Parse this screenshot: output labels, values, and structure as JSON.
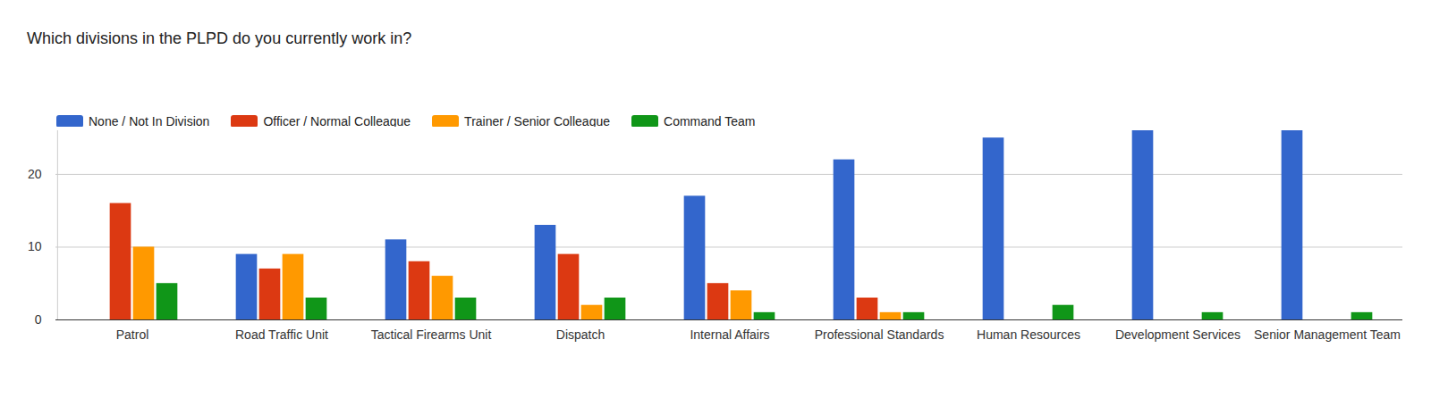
{
  "chart_data": {
    "type": "bar",
    "title": "Which divisions in the PLPD do you currently work in?",
    "categories": [
      "Patrol",
      "Road Traffic Unit",
      "Tactical Firearms Unit",
      "Dispatch",
      "Internal Affairs",
      "Professional Standards",
      "Human Resources",
      "Development Services",
      "Senior Management Team"
    ],
    "series": [
      {
        "name": "None / Not In Division",
        "color": "#3366cc",
        "values": [
          0,
          9,
          11,
          13,
          17,
          22,
          25,
          26,
          26
        ]
      },
      {
        "name": "Officer / Normal Colleague",
        "color": "#dc3912",
        "values": [
          16,
          7,
          8,
          9,
          5,
          3,
          0,
          0,
          0
        ]
      },
      {
        "name": "Trainer / Senior Colleague",
        "color": "#ff9900",
        "values": [
          10,
          9,
          6,
          2,
          4,
          1,
          0,
          0,
          0
        ]
      },
      {
        "name": "Command Team",
        "color": "#109618",
        "values": [
          5,
          3,
          3,
          3,
          1,
          1,
          2,
          1,
          1
        ]
      }
    ],
    "ylim": [
      0,
      26
    ],
    "yticks": [
      0,
      10,
      20
    ],
    "grid": true,
    "legend": "top"
  }
}
